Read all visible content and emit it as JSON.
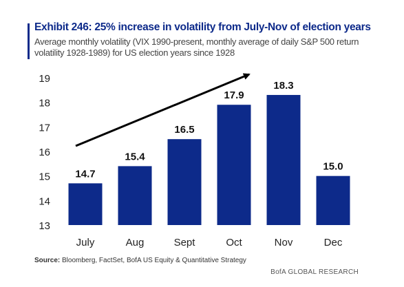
{
  "title": "Exhibit 246: 25% increase in volatility from July-Nov of election years",
  "subtitle": "Average monthly volatility (VIX 1990-present, monthly average of daily S&P 500 return volatility 1928-1989) for US election years since 1928",
  "source_label": "Source:",
  "source_text": "Bloomberg, FactSet, BofA US Equity & Quantitative Strategy",
  "brand": "BofA GLOBAL RESEARCH",
  "colors": {
    "bar": "#0d2a8a",
    "title": "#0d2a8a",
    "arrow": "#000000"
  },
  "chart_data": {
    "type": "bar",
    "categories": [
      "July",
      "Aug",
      "Sept",
      "Oct",
      "Nov",
      "Dec"
    ],
    "values": [
      14.7,
      15.4,
      16.5,
      17.9,
      18.3,
      15.0
    ],
    "data_labels": [
      "14.7",
      "15.4",
      "16.5",
      "17.9",
      "18.3",
      "15.0"
    ],
    "ylim": [
      13,
      19
    ],
    "yticks": [
      13,
      14,
      15,
      16,
      17,
      18,
      19
    ],
    "grid": false,
    "annotation": "upward trend arrow from July to Nov"
  }
}
